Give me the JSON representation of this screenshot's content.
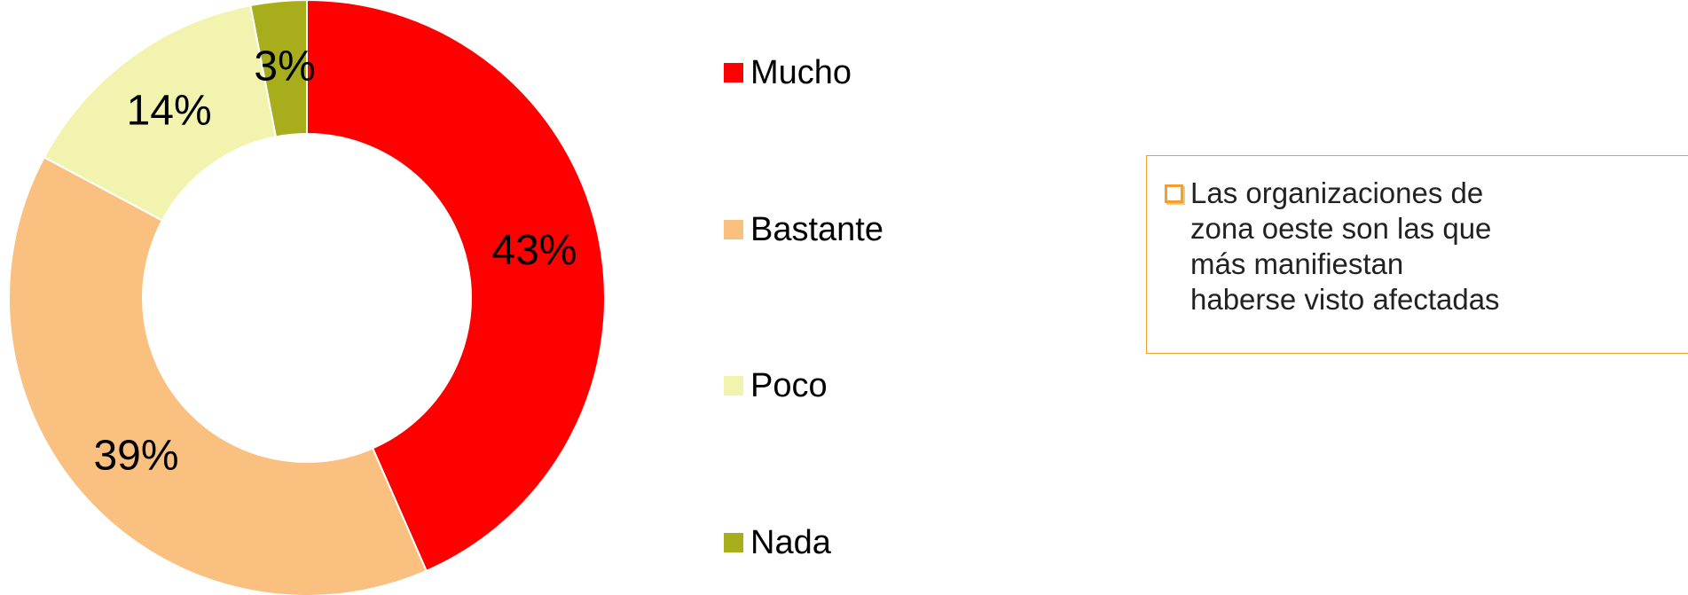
{
  "chart_data": {
    "type": "pie",
    "variant": "donut",
    "categories": [
      "Mucho",
      "Bastante",
      "Poco",
      "Nada"
    ],
    "values": [
      43,
      39,
      14,
      3
    ],
    "labels": [
      "43%",
      "39%",
      "14%",
      "3%"
    ],
    "colors": [
      "#ff0000",
      "#fac080",
      "#f3f3b0",
      "#a8ad1c"
    ],
    "legend_position": "right"
  },
  "note": {
    "text": "Las organizaciones de zona oeste son las que más manifiestan haberse visto afectadas",
    "bullet_icon": "square-bullet-icon",
    "border_color": "#f0a030"
  }
}
